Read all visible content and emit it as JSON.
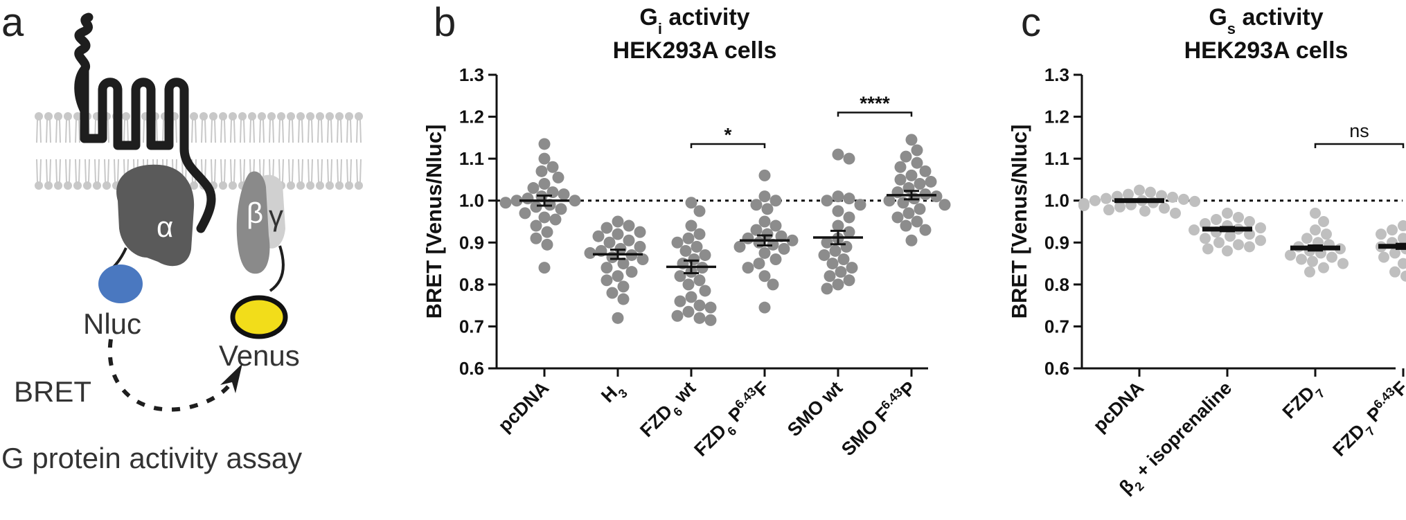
{
  "figure": {
    "panel_a": {
      "letter": "a",
      "labels": {
        "alpha": "α",
        "beta": "β",
        "gamma": "γ",
        "nluc": "Nluc",
        "venus": "Venus",
        "bret": "BRET",
        "caption": "G protein activity assay"
      }
    },
    "panel_b": {
      "letter": "b"
    },
    "panel_c": {
      "letter": "c"
    }
  },
  "colors": {
    "dot": "#8c8c8c",
    "dot_light": "#bfbfbf",
    "receptor": "#1e1e1e",
    "galpha": "#5a5a5a",
    "gbeta": "#8a8a8a",
    "ggamma": "#d0d0d0",
    "nluc": "#4a78c0",
    "venus": "#f2dd1a",
    "membrane": "#c8c8c8"
  },
  "chart_data": [
    {
      "type": "scatter",
      "panel": "b",
      "title_main": "G",
      "title_sub": "i",
      "title_rest": " activity",
      "title_line2": "HEK293A cells",
      "ylabel": "BRET [Venus/Nluc]",
      "ylim": [
        0.6,
        1.3
      ],
      "yticks": [
        "0.6",
        "0.7",
        "0.8",
        "0.9",
        "1.0",
        "1.1",
        "1.2",
        "1.3"
      ],
      "reference_line": 1.0,
      "categories": [
        {
          "base": "pcDNA",
          "sup": "",
          "sub": "",
          "rest": ""
        },
        {
          "base": "H",
          "sup": "",
          "sub": "3",
          "rest": ""
        },
        {
          "base": "FZD",
          "sup": "",
          "sub": "6",
          "rest": " wt"
        },
        {
          "base": "FZD",
          "sup": "6.43",
          "sub": "6",
          "rest": " P",
          "tail": "F"
        },
        {
          "base": "SMO wt",
          "sup": "",
          "sub": "",
          "rest": ""
        },
        {
          "base": "SMO F",
          "sup": "6.43",
          "sub": "",
          "rest": "",
          "tail": "P"
        }
      ],
      "series": [
        {
          "name": "pcDNA",
          "mean": 1.0,
          "sem": 0.012,
          "values": [
            1.135,
            1.1,
            1.08,
            1.07,
            1.055,
            1.04,
            1.03,
            1.02,
            1.015,
            1.01,
            1.005,
            1.0,
            1.0,
            0.995,
            0.99,
            0.985,
            0.98,
            0.97,
            0.96,
            0.955,
            0.94,
            0.925,
            0.91,
            0.895,
            0.84
          ]
        },
        {
          "name": "H3",
          "mean": 0.872,
          "sem": 0.011,
          "values": [
            0.95,
            0.94,
            0.935,
            0.925,
            0.92,
            0.915,
            0.905,
            0.9,
            0.89,
            0.885,
            0.88,
            0.875,
            0.87,
            0.865,
            0.86,
            0.85,
            0.84,
            0.83,
            0.82,
            0.81,
            0.795,
            0.78,
            0.765,
            0.72
          ]
        },
        {
          "name": "FZD6 wt",
          "mean": 0.842,
          "sem": 0.015,
          "values": [
            0.995,
            0.975,
            0.94,
            0.92,
            0.91,
            0.9,
            0.89,
            0.88,
            0.87,
            0.86,
            0.85,
            0.84,
            0.83,
            0.82,
            0.81,
            0.8,
            0.785,
            0.77,
            0.76,
            0.75,
            0.745,
            0.735,
            0.725,
            0.72,
            0.715
          ]
        },
        {
          "name": "FZD6 P6.43F",
          "mean": 0.905,
          "sem": 0.012,
          "values": [
            1.06,
            1.01,
            1.0,
            0.99,
            0.98,
            0.95,
            0.94,
            0.93,
            0.92,
            0.915,
            0.91,
            0.905,
            0.9,
            0.895,
            0.89,
            0.885,
            0.875,
            0.86,
            0.85,
            0.84,
            0.82,
            0.8,
            0.745
          ]
        },
        {
          "name": "SMO wt",
          "mean": 0.912,
          "sem": 0.016,
          "values": [
            1.11,
            1.1,
            1.01,
            1.005,
            1.0,
            0.99,
            0.975,
            0.96,
            0.94,
            0.925,
            0.91,
            0.9,
            0.89,
            0.88,
            0.87,
            0.86,
            0.85,
            0.84,
            0.83,
            0.82,
            0.81,
            0.8,
            0.79
          ]
        },
        {
          "name": "SMO F6.43P",
          "mean": 1.013,
          "sem": 0.01,
          "values": [
            1.145,
            1.12,
            1.105,
            1.09,
            1.08,
            1.07,
            1.06,
            1.05,
            1.045,
            1.04,
            1.03,
            1.02,
            1.015,
            1.01,
            1.005,
            1.0,
            0.995,
            0.99,
            0.98,
            0.97,
            0.96,
            0.95,
            0.94,
            0.93,
            0.905
          ]
        }
      ],
      "significance": [
        {
          "from": 2,
          "to": 3,
          "y": 1.135,
          "label": "*"
        },
        {
          "from": 4,
          "to": 5,
          "y": 1.21,
          "label": "****"
        }
      ]
    },
    {
      "type": "scatter",
      "panel": "c",
      "title_main": "G",
      "title_sub": "s",
      "title_rest": " activity",
      "title_line2": "HEK293A cells",
      "ylabel": "BRET [Venus/Nluc]",
      "ylim": [
        0.6,
        1.3
      ],
      "yticks": [
        "0.6",
        "0.7",
        "0.8",
        "0.9",
        "1.0",
        "1.1",
        "1.2",
        "1.3"
      ],
      "reference_line": 1.0,
      "categories": [
        {
          "base": "pcDNA",
          "sup": "",
          "sub": "",
          "rest": ""
        },
        {
          "base": "β",
          "sup": "",
          "sub": "2",
          "rest": " + isoprenaline"
        },
        {
          "base": "FZD",
          "sup": "",
          "sub": "7",
          "rest": ""
        },
        {
          "base": "FZD",
          "sup": "6.43",
          "sub": "7",
          "rest": " P",
          "tail": "F"
        }
      ],
      "series": [
        {
          "name": "pcDNA",
          "mean": 1.0,
          "sem": 0.003,
          "values": [
            1.025,
            1.02,
            1.015,
            1.012,
            1.01,
            1.008,
            1.005,
            1.003,
            1.0,
            1.0,
            0.998,
            0.995,
            0.993,
            0.99,
            0.988,
            0.985,
            0.982,
            0.978,
            0.975,
            0.97
          ]
        },
        {
          "name": "β2 + isoprenaline",
          "mean": 0.932,
          "sem": 0.005,
          "values": [
            0.97,
            0.96,
            0.955,
            0.95,
            0.945,
            0.94,
            0.935,
            0.932,
            0.93,
            0.925,
            0.92,
            0.915,
            0.91,
            0.905,
            0.9,
            0.895,
            0.89,
            0.885,
            0.88
          ]
        },
        {
          "name": "FZD7",
          "mean": 0.887,
          "sem": 0.006,
          "values": [
            0.97,
            0.95,
            0.93,
            0.92,
            0.91,
            0.9,
            0.895,
            0.89,
            0.885,
            0.88,
            0.875,
            0.87,
            0.865,
            0.86,
            0.855,
            0.85,
            0.84,
            0.83
          ]
        },
        {
          "name": "FZD7 P6.43F",
          "mean": 0.891,
          "sem": 0.006,
          "values": [
            0.94,
            0.935,
            0.93,
            0.925,
            0.92,
            0.91,
            0.905,
            0.9,
            0.895,
            0.89,
            0.885,
            0.88,
            0.875,
            0.87,
            0.865,
            0.86,
            0.85,
            0.84,
            0.83,
            0.82
          ]
        }
      ],
      "significance": [
        {
          "from": 2,
          "to": 3,
          "y": 1.135,
          "label": "ns"
        }
      ]
    }
  ]
}
